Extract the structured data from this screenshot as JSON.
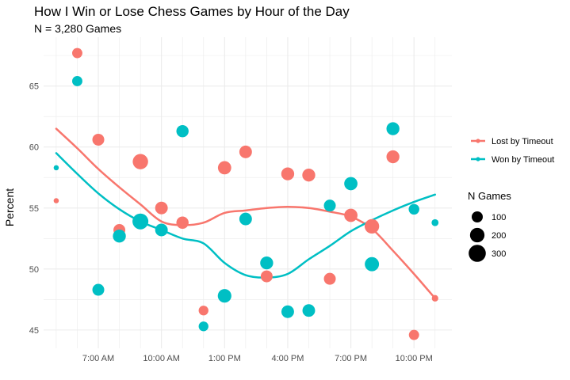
{
  "chart_data": {
    "type": "scatter",
    "title": "How I Win or Lose Chess Games by Hour of the Day",
    "subtitle": "N = 3,280 Games",
    "xlabel": "",
    "ylabel": "Percent",
    "xlim": [
      4.4,
      23.8
    ],
    "ylim": [
      43.5,
      69.0
    ],
    "x_ticks": [
      {
        "value": 7,
        "label": "7:00 AM"
      },
      {
        "value": 10,
        "label": "10:00 AM"
      },
      {
        "value": 13,
        "label": "1:00 PM"
      },
      {
        "value": 16,
        "label": "4:00 PM"
      },
      {
        "value": 19,
        "label": "7:00 PM"
      },
      {
        "value": 22,
        "label": "10:00 PM"
      }
    ],
    "y_ticks": [
      45,
      50,
      55,
      60,
      65
    ],
    "grid": true,
    "legend_position": "right",
    "series": [
      {
        "name": "Lost by Timeout",
        "color": "#F8766D",
        "points": [
          {
            "x": 5,
            "y": 55.6,
            "n": 8
          },
          {
            "x": 6,
            "y": 67.7,
            "n": 80
          },
          {
            "x": 7,
            "y": 60.6,
            "n": 120
          },
          {
            "x": 8,
            "y": 53.2,
            "n": 120
          },
          {
            "x": 9,
            "y": 58.8,
            "n": 230
          },
          {
            "x": 10,
            "y": 55.0,
            "n": 140
          },
          {
            "x": 11,
            "y": 53.8,
            "n": 130
          },
          {
            "x": 12,
            "y": 46.6,
            "n": 70
          },
          {
            "x": 13,
            "y": 58.3,
            "n": 160
          },
          {
            "x": 14,
            "y": 59.6,
            "n": 140
          },
          {
            "x": 15,
            "y": 49.4,
            "n": 120
          },
          {
            "x": 16,
            "y": 57.8,
            "n": 150
          },
          {
            "x": 17,
            "y": 57.7,
            "n": 150
          },
          {
            "x": 18,
            "y": 49.2,
            "n": 120
          },
          {
            "x": 19,
            "y": 54.4,
            "n": 160
          },
          {
            "x": 20,
            "y": 53.5,
            "n": 200
          },
          {
            "x": 21,
            "y": 59.2,
            "n": 150
          },
          {
            "x": 22,
            "y": 44.6,
            "n": 80
          },
          {
            "x": 23,
            "y": 47.6,
            "n": 20
          }
        ],
        "trend": [
          [
            5,
            61.5
          ],
          [
            6,
            59.9
          ],
          [
            7,
            58.2
          ],
          [
            8,
            56.7
          ],
          [
            9,
            55.3
          ],
          [
            10,
            53.9
          ],
          [
            11,
            53.6
          ],
          [
            12,
            53.8
          ],
          [
            13,
            54.6
          ],
          [
            14,
            54.8
          ],
          [
            15,
            55.0
          ],
          [
            16,
            55.1
          ],
          [
            17,
            55.0
          ],
          [
            18,
            54.7
          ],
          [
            19,
            54.3
          ],
          [
            20,
            53.3
          ],
          [
            21,
            51.5
          ],
          [
            22,
            49.6
          ],
          [
            23,
            47.6
          ]
        ]
      },
      {
        "name": "Won by Timeout",
        "color": "#00BFC4",
        "points": [
          {
            "x": 5,
            "y": 58.3,
            "n": 8
          },
          {
            "x": 6,
            "y": 65.4,
            "n": 80
          },
          {
            "x": 7,
            "y": 48.3,
            "n": 120
          },
          {
            "x": 8,
            "y": 52.7,
            "n": 150
          },
          {
            "x": 9,
            "y": 53.9,
            "n": 250
          },
          {
            "x": 10,
            "y": 53.2,
            "n": 140
          },
          {
            "x": 11,
            "y": 61.3,
            "n": 130
          },
          {
            "x": 12,
            "y": 45.3,
            "n": 70
          },
          {
            "x": 13,
            "y": 47.8,
            "n": 170
          },
          {
            "x": 14,
            "y": 54.1,
            "n": 140
          },
          {
            "x": 15,
            "y": 50.5,
            "n": 150
          },
          {
            "x": 16,
            "y": 46.5,
            "n": 140
          },
          {
            "x": 17,
            "y": 46.6,
            "n": 140
          },
          {
            "x": 18,
            "y": 55.2,
            "n": 120
          },
          {
            "x": 19,
            "y": 57.0,
            "n": 160
          },
          {
            "x": 20,
            "y": 50.4,
            "n": 190
          },
          {
            "x": 21,
            "y": 61.5,
            "n": 150
          },
          {
            "x": 22,
            "y": 54.9,
            "n": 90
          },
          {
            "x": 23,
            "y": 53.8,
            "n": 25
          }
        ],
        "trend": [
          [
            5,
            59.5
          ],
          [
            6,
            57.8
          ],
          [
            7,
            56.2
          ],
          [
            8,
            54.9
          ],
          [
            9,
            53.9
          ],
          [
            10,
            53.2
          ],
          [
            11,
            52.5
          ],
          [
            12,
            52.1
          ],
          [
            13,
            50.5
          ],
          [
            14,
            49.5
          ],
          [
            15,
            49.3
          ],
          [
            16,
            49.6
          ],
          [
            17,
            50.8
          ],
          [
            18,
            51.9
          ],
          [
            19,
            53.1
          ],
          [
            20,
            54.0
          ],
          [
            21,
            54.8
          ],
          [
            22,
            55.5
          ],
          [
            23,
            56.1
          ]
        ]
      }
    ],
    "size_legend": {
      "title": "N Games",
      "entries": [
        {
          "value": 100,
          "label": "100"
        },
        {
          "value": 200,
          "label": "200"
        },
        {
          "value": 300,
          "label": "300"
        }
      ]
    }
  }
}
